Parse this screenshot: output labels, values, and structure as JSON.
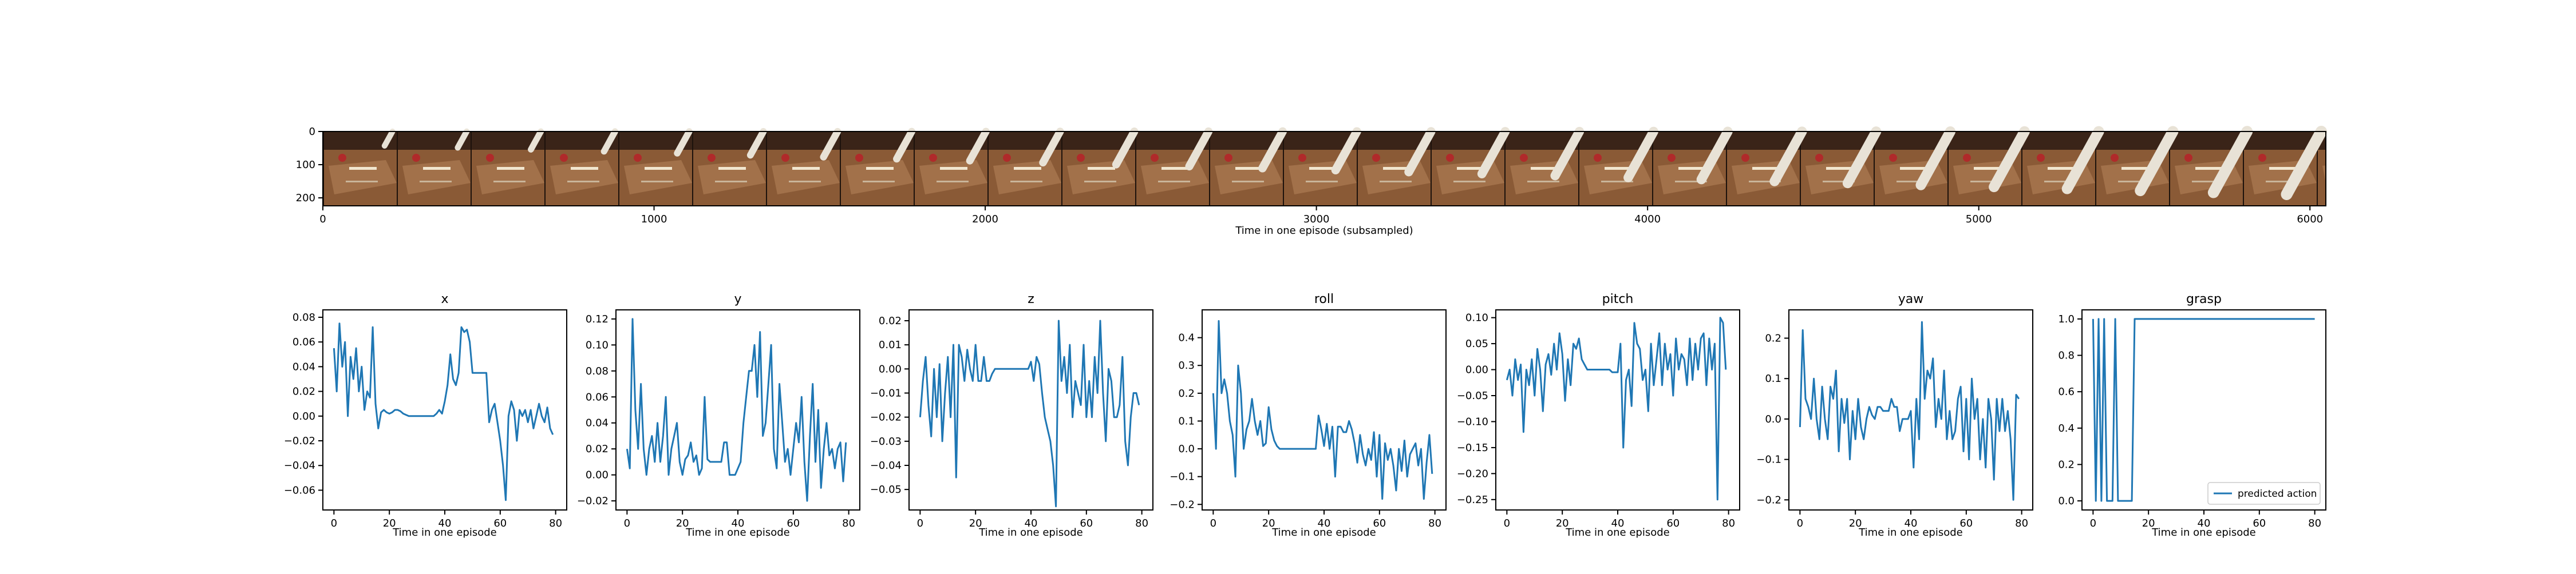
{
  "chart_data": [
    {
      "id": "frames",
      "type": "image-strip",
      "xlabel": "Time in one episode (subsampled)",
      "xlim": [
        0,
        6048
      ],
      "xticks": [
        0,
        1000,
        2000,
        3000,
        4000,
        5000,
        6000
      ],
      "ylim": [
        224,
        0
      ],
      "yticks": [
        0,
        100,
        200
      ],
      "frame_count": 27
    },
    {
      "id": "x",
      "type": "line",
      "title": "x",
      "xlabel": "Time in one episode",
      "xlim": [
        -4,
        84
      ],
      "ylim": [
        -0.076,
        0.086
      ],
      "xticks": [
        0,
        20,
        40,
        60,
        80
      ],
      "yticks": [
        -0.06,
        -0.04,
        -0.02,
        0.0,
        0.02,
        0.04,
        0.06,
        0.08
      ],
      "ytick_labels": [
        "−0.06",
        "−0.04",
        "−0.02",
        "0.00",
        "0.02",
        "0.04",
        "0.06",
        "0.08"
      ],
      "series": [
        {
          "values": [
            0.055,
            0.02,
            0.075,
            0.04,
            0.06,
            0.0,
            0.048,
            0.03,
            0.055,
            0.02,
            0.04,
            0.005,
            0.02,
            0.015,
            0.072,
            0.01,
            -0.01,
            0.003,
            0.005,
            0.003,
            0.002,
            0.003,
            0.005,
            0.005,
            0.004,
            0.002,
            0.001,
            0.0,
            0.0,
            0.0,
            0.0,
            0.0,
            0.0,
            0.0,
            0.0,
            0.0,
            0.0,
            0.002,
            0.005,
            0.002,
            0.012,
            0.025,
            0.05,
            0.03,
            0.025,
            0.035,
            0.072,
            0.068,
            0.07,
            0.06,
            0.035,
            0.035,
            0.035,
            0.035,
            0.035,
            0.035,
            -0.005,
            0.005,
            0.01,
            -0.005,
            -0.02,
            -0.04,
            -0.068,
            0.0,
            0.012,
            0.005,
            -0.02,
            0.005,
            0.0,
            0.005,
            -0.005,
            0.005,
            -0.01,
            0.0,
            0.01,
            0.0,
            -0.005,
            0.007,
            -0.01,
            -0.015
          ]
        }
      ]
    },
    {
      "id": "y",
      "type": "line",
      "title": "y",
      "xlabel": "Time in one episode",
      "xlim": [
        -4,
        84
      ],
      "ylim": [
        -0.027,
        0.127
      ],
      "xticks": [
        0,
        20,
        40,
        60,
        80
      ],
      "yticks": [
        -0.02,
        0.0,
        0.02,
        0.04,
        0.06,
        0.08,
        0.1,
        0.12
      ],
      "ytick_labels": [
        "−0.02",
        "0.00",
        "0.02",
        "0.04",
        "0.06",
        "0.08",
        "0.10",
        "0.12"
      ],
      "series": [
        {
          "values": [
            0.02,
            0.005,
            0.12,
            0.05,
            0.02,
            0.07,
            0.02,
            0.0,
            0.02,
            0.03,
            0.01,
            0.04,
            0.01,
            0.03,
            0.06,
            0.0,
            0.02,
            0.03,
            0.04,
            0.01,
            0.0,
            0.012,
            0.015,
            0.025,
            0.01,
            0.015,
            0.0,
            0.005,
            0.06,
            0.012,
            0.01,
            0.01,
            0.01,
            0.01,
            0.01,
            0.025,
            0.025,
            0.0,
            0.0,
            0.0,
            0.005,
            0.01,
            0.04,
            0.06,
            0.08,
            0.08,
            0.1,
            0.06,
            0.11,
            0.03,
            0.04,
            0.07,
            0.1,
            0.02,
            0.005,
            0.07,
            0.04,
            0.01,
            0.02,
            0.0,
            0.02,
            0.04,
            0.025,
            0.06,
            0.01,
            -0.02,
            0.03,
            0.07,
            0.01,
            0.05,
            -0.01,
            0.02,
            0.04,
            0.015,
            0.02,
            0.005,
            0.02,
            0.025,
            -0.005,
            0.025
          ]
        }
      ]
    },
    {
      "id": "z",
      "type": "line",
      "title": "z",
      "xlabel": "Time in one episode",
      "xlim": [
        -4,
        84
      ],
      "ylim": [
        -0.0585,
        0.0245
      ],
      "xticks": [
        0,
        20,
        40,
        60,
        80
      ],
      "yticks": [
        -0.05,
        -0.04,
        -0.03,
        -0.02,
        -0.01,
        0.0,
        0.01,
        0.02
      ],
      "ytick_labels": [
        "−0.05",
        "−0.04",
        "−0.03",
        "−0.02",
        "−0.01",
        "0.00",
        "0.01",
        "0.02"
      ],
      "series": [
        {
          "values": [
            -0.02,
            -0.005,
            0.005,
            -0.015,
            -0.028,
            0.0,
            -0.02,
            0.002,
            -0.03,
            -0.01,
            0.005,
            -0.02,
            0.01,
            -0.045,
            0.01,
            0.005,
            -0.005,
            0.008,
            0.0,
            -0.005,
            0.01,
            -0.005,
            -0.005,
            0.005,
            -0.005,
            -0.005,
            -0.002,
            0.0,
            0.0,
            0.0,
            0.0,
            0.0,
            0.0,
            0.0,
            0.0,
            0.0,
            0.0,
            0.0,
            0.0,
            0.0,
            0.003,
            -0.005,
            0.005,
            0.002,
            -0.01,
            -0.02,
            -0.025,
            -0.03,
            -0.04,
            -0.057,
            0.02,
            -0.005,
            0.005,
            -0.01,
            0.01,
            -0.02,
            -0.005,
            -0.01,
            -0.015,
            0.01,
            -0.02,
            -0.005,
            -0.02,
            0.005,
            -0.01,
            0.02,
            -0.01,
            -0.03,
            0.0,
            -0.005,
            -0.02,
            -0.02,
            -0.015,
            0.005,
            -0.03,
            -0.04,
            -0.02,
            -0.01,
            -0.01,
            -0.015
          ]
        }
      ]
    },
    {
      "id": "roll",
      "type": "line",
      "title": "roll",
      "xlabel": "Time in one episode",
      "xlim": [
        -4,
        84
      ],
      "ylim": [
        -0.22,
        0.5
      ],
      "xticks": [
        0,
        20,
        40,
        60,
        80
      ],
      "yticks": [
        -0.2,
        -0.1,
        0.0,
        0.1,
        0.2,
        0.3,
        0.4
      ],
      "ytick_labels": [
        "−0.2",
        "−0.1",
        "0.0",
        "0.1",
        "0.2",
        "0.3",
        "0.4"
      ],
      "series": [
        {
          "values": [
            0.2,
            0.0,
            0.46,
            0.2,
            0.25,
            0.2,
            0.1,
            0.05,
            -0.1,
            0.3,
            0.2,
            0.0,
            0.07,
            0.1,
            0.18,
            0.1,
            0.05,
            0.1,
            0.01,
            0.02,
            0.15,
            0.07,
            0.03,
            0.01,
            0.0,
            0.0,
            0.0,
            0.0,
            0.0,
            0.0,
            0.0,
            0.0,
            0.0,
            0.0,
            0.0,
            0.0,
            0.0,
            0.0,
            0.12,
            0.07,
            0.01,
            0.09,
            0.0,
            0.08,
            -0.1,
            0.08,
            0.08,
            0.06,
            0.06,
            0.1,
            0.07,
            0.02,
            -0.05,
            0.05,
            -0.02,
            -0.06,
            0.0,
            -0.04,
            0.06,
            -0.1,
            0.05,
            -0.18,
            0.02,
            -0.04,
            0.0,
            -0.06,
            -0.15,
            0.0,
            -0.08,
            0.03,
            -0.1,
            -0.02,
            0.0,
            0.02,
            -0.06,
            0.0,
            -0.18,
            -0.05,
            0.05,
            -0.09
          ]
        }
      ]
    },
    {
      "id": "pitch",
      "type": "line",
      "title": "pitch",
      "xlabel": "Time in one episode",
      "xlim": [
        -4,
        84
      ],
      "ylim": [
        -0.27,
        0.115
      ],
      "xticks": [
        0,
        20,
        40,
        60,
        80
      ],
      "yticks": [
        -0.25,
        -0.2,
        -0.15,
        -0.1,
        -0.05,
        0.0,
        0.05,
        0.1
      ],
      "ytick_labels": [
        "−0.25",
        "−0.20",
        "−0.15",
        "−0.10",
        "−0.05",
        "0.00",
        "0.05",
        "0.10"
      ],
      "series": [
        {
          "values": [
            -0.02,
            0.0,
            -0.05,
            0.02,
            -0.02,
            0.01,
            -0.12,
            0.0,
            -0.03,
            0.02,
            -0.05,
            0.04,
            0.0,
            -0.08,
            0.01,
            0.03,
            -0.01,
            0.05,
            0.0,
            0.07,
            0.03,
            -0.06,
            0.02,
            -0.03,
            0.05,
            0.04,
            0.06,
            0.02,
            0.01,
            0.0,
            0.0,
            0.0,
            0.0,
            0.0,
            0.0,
            0.0,
            0.0,
            0.0,
            -0.005,
            -0.005,
            -0.005,
            0.05,
            -0.15,
            -0.02,
            0.0,
            -0.07,
            0.09,
            0.05,
            0.04,
            -0.02,
            0.0,
            -0.08,
            0.05,
            -0.03,
            0.02,
            0.07,
            -0.03,
            0.05,
            0.0,
            0.03,
            -0.05,
            0.06,
            0.0,
            0.03,
            0.02,
            -0.03,
            0.06,
            -0.02,
            0.05,
            0.0,
            0.06,
            0.07,
            -0.03,
            0.06,
            0.0,
            0.05,
            -0.25,
            0.1,
            0.09,
            0.0
          ]
        }
      ]
    },
    {
      "id": "yaw",
      "type": "line",
      "title": "yaw",
      "xlabel": "Time in one episode",
      "xlim": [
        -4,
        84
      ],
      "ylim": [
        -0.225,
        0.27
      ],
      "xticks": [
        0,
        20,
        40,
        60,
        80
      ],
      "yticks": [
        -0.2,
        -0.1,
        0.0,
        0.1,
        0.2
      ],
      "ytick_labels": [
        "−0.2",
        "−0.1",
        "0.0",
        "0.1",
        "0.2"
      ],
      "series": [
        {
          "values": [
            -0.02,
            0.22,
            0.05,
            0.03,
            0.0,
            0.1,
            0.0,
            -0.05,
            0.08,
            0.0,
            -0.05,
            0.08,
            0.05,
            0.12,
            -0.08,
            0.05,
            -0.01,
            0.05,
            -0.1,
            0.02,
            -0.05,
            0.05,
            -0.02,
            -0.05,
            0.0,
            0.03,
            0.01,
            0.0,
            0.03,
            0.03,
            0.02,
            0.02,
            0.02,
            0.05,
            0.03,
            0.03,
            -0.03,
            0.0,
            0.0,
            0.0,
            0.02,
            -0.12,
            0.05,
            -0.05,
            0.24,
            0.05,
            0.12,
            0.1,
            0.15,
            -0.02,
            0.05,
            0.0,
            0.12,
            -0.05,
            0.02,
            -0.05,
            -0.03,
            0.05,
            0.08,
            -0.08,
            0.05,
            -0.1,
            0.1,
            0.0,
            0.05,
            -0.1,
            0.0,
            -0.12,
            0.05,
            0.0,
            -0.15,
            0.05,
            -0.03,
            0.05,
            -0.03,
            0.02,
            -0.05,
            -0.2,
            0.06,
            0.05
          ]
        }
      ]
    },
    {
      "id": "grasp",
      "type": "line",
      "title": "grasp",
      "xlabel": "Time in one episode",
      "xlim": [
        -4,
        84
      ],
      "ylim": [
        -0.05,
        1.05
      ],
      "xticks": [
        0,
        20,
        40,
        60,
        80
      ],
      "yticks": [
        0.0,
        0.2,
        0.4,
        0.6,
        0.8,
        1.0
      ],
      "ytick_labels": [
        "0.0",
        "0.2",
        "0.4",
        "0.6",
        "0.8",
        "1.0"
      ],
      "legend": "lower right",
      "series": [
        {
          "name": "predicted action",
          "values": [
            1,
            0,
            1,
            0,
            1,
            0,
            0,
            0,
            1,
            0,
            0,
            0,
            0,
            0,
            0,
            1,
            1,
            1,
            1,
            1,
            1,
            1,
            1,
            1,
            1,
            1,
            1,
            1,
            1,
            1,
            1,
            1,
            1,
            1,
            1,
            1,
            1,
            1,
            1,
            1,
            1,
            1,
            1,
            1,
            1,
            1,
            1,
            1,
            1,
            1,
            1,
            1,
            1,
            1,
            1,
            1,
            1,
            1,
            1,
            1,
            1,
            1,
            1,
            1,
            1,
            1,
            1,
            1,
            1,
            1,
            1,
            1,
            1,
            1,
            1,
            1,
            1,
            1,
            1,
            1,
            1
          ]
        }
      ]
    }
  ]
}
